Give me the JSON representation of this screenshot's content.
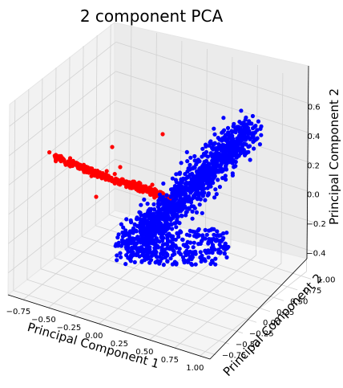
{
  "chart_data": {
    "type": "scatter",
    "title": "2 component PCA",
    "xlabel": "Principal Component 1",
    "ylabel": "Principal Component 2",
    "zlabel": "Principal Component 2",
    "xticks": [
      "−0.75",
      "−0.50",
      "−0.25",
      "0.00",
      "0.25",
      "0.50",
      "0.75",
      "1.00"
    ],
    "yticks": [
      "−0.75",
      "−0.50",
      "−0.25",
      "0.00",
      "0.25",
      "0.50",
      "0.75",
      "1.00"
    ],
    "zticks": [
      "−0.4",
      "−0.2",
      "0.0",
      "0.2",
      "0.4",
      "0.6"
    ],
    "xlim": [
      -0.9,
      1.1
    ],
    "ylim": [
      -0.85,
      1.1
    ],
    "zlim": [
      -0.55,
      0.75
    ],
    "grid": true,
    "series": [
      {
        "color": "#ff0000",
        "count": 350,
        "note": "narrow elongated band from low PC1 toward PC1≈0.2"
      },
      {
        "color": "#0000ff",
        "count": 1200,
        "note": "broad cloud from PC1≈0 to 1.0, rising toward back"
      }
    ]
  }
}
